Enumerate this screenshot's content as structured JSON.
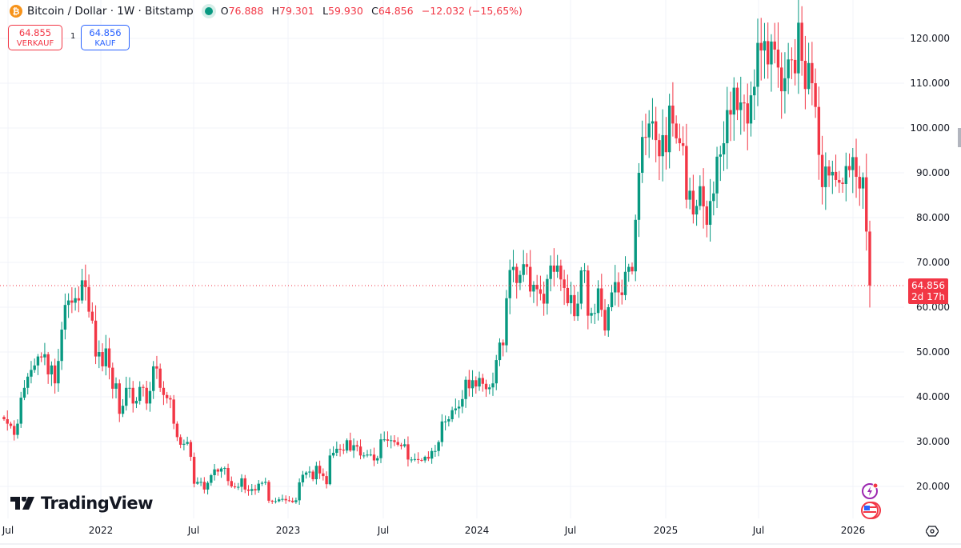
{
  "header": {
    "symbol": "Bitcoin / Dollar · 1W · Bitstamp",
    "coin_glyph": "₿",
    "ohlc": {
      "o_label": "O",
      "o": "76.888",
      "h_label": "H",
      "h": "79.301",
      "l_label": "L",
      "l": "59.930",
      "c_label": "C",
      "c": "64.856",
      "change": "−12.032 (−15,65%)"
    }
  },
  "trade": {
    "sell_price": "64.855",
    "sell_label": "VERKAUF",
    "spread": "1",
    "buy_price": "64.856",
    "buy_label": "KAUF"
  },
  "logo": "TradingView",
  "colors": {
    "up": "#089981",
    "down": "#f23645",
    "grid": "#f0f3fa"
  },
  "icons": [
    "lightning-alert-icon",
    "us-flag-icon",
    "settings-hexagon-icon"
  ],
  "chart_data": {
    "type": "candlestick",
    "interval": "1W",
    "title": "",
    "grid": true,
    "ylim": [
      15000,
      126000
    ],
    "yticks": [
      "20.000",
      "30.000",
      "40.000",
      "50.000",
      "60.000",
      "70.000",
      "80.000",
      "90.000",
      "100.000",
      "110.000",
      "120.000"
    ],
    "ytick_values": [
      20000,
      30000,
      40000,
      50000,
      60000,
      70000,
      80000,
      90000,
      100000,
      110000,
      120000
    ],
    "xticks": [
      "Jul",
      "2022",
      "Jul",
      "2023",
      "Jul",
      "2024",
      "Jul",
      "2025",
      "Jul",
      "2026"
    ],
    "first_open": 35500,
    "closes": [
      35000,
      34000,
      33500,
      31500,
      34000,
      39800,
      42000,
      44500,
      46000,
      47000,
      49000,
      48800,
      49500,
      45000,
      47000,
      43000,
      48000,
      55000,
      60500,
      61500,
      61000,
      62000,
      61500,
      66000,
      64500,
      59000,
      57000,
      49000,
      50000,
      46800,
      50800,
      46500,
      41800,
      43000,
      36200,
      38000,
      42000,
      42000,
      38500,
      39100,
      42200,
      42000,
      38500,
      41300,
      46800,
      46300,
      42000,
      40400,
      39700,
      39400,
      34000,
      31000,
      29300,
      29500,
      29900,
      26600,
      20600,
      21000,
      21000,
      19300,
      20800,
      22500,
      23800,
      23300,
      24000,
      24100,
      21200,
      20000,
      19800,
      19900,
      21800,
      19300,
      19000,
      19400,
      19100,
      20600,
      20800,
      21000,
      16800,
      16600,
      16700,
      17100,
      17200,
      16900,
      16800,
      16500,
      16900,
      20900,
      22600,
      23100,
      23300,
      21600,
      24600,
      22900,
      22300,
      20500,
      26900,
      27500,
      28400,
      28200,
      28000,
      30300,
      28000,
      29200,
      28900,
      26900,
      26900,
      27100,
      27100,
      25800,
      26300,
      30500,
      30500,
      30200,
      30300,
      29900,
      29300,
      29000,
      29400,
      26000,
      26000,
      26100,
      25900,
      25800,
      26600,
      26200,
      27900,
      27900,
      29900,
      34500,
      34500,
      35000,
      37000,
      37400,
      37800,
      39500,
      43800,
      41900,
      43700,
      42300,
      44200,
      42900,
      41700,
      42100,
      43000,
      48200,
      52100,
      51500,
      62000,
      68300,
      69000,
      65400,
      67200,
      69600,
      69000,
      63500,
      65000,
      64000,
      63000,
      60800,
      66300,
      69300,
      67900,
      69300,
      66200,
      64300,
      60900,
      62700,
      58000,
      60800,
      68200,
      68200,
      58100,
      58700,
      58700,
      64200,
      59400,
      54800,
      60000,
      63300,
      65600,
      63300,
      62700,
      67900,
      69000,
      68000,
      79500,
      90000,
      98000,
      97900,
      101000,
      101500,
      97300,
      93700,
      98400,
      94600,
      105000,
      101000,
      97700,
      96600,
      96000,
      84000,
      86000,
      80700,
      82600,
      87000,
      82500,
      78400,
      83700,
      85400,
      93600,
      94100,
      96600,
      104000,
      103000,
      109000,
      104000,
      105700,
      105500,
      101000,
      107300,
      109200,
      119000,
      117300,
      119400,
      114200,
      119300,
      117500,
      113500,
      108200,
      111100,
      115300,
      115200,
      112200,
      123500,
      115000,
      108700,
      114500,
      110000,
      104700,
      94000,
      86800,
      91400,
      89400,
      90200,
      88400,
      87800,
      87500,
      91500,
      90600,
      93500,
      89100,
      86500,
      89000,
      76888,
      64856
    ],
    "last_candle": {
      "open": 76888,
      "high": 79301,
      "low": 59930,
      "close": 64856
    },
    "last_price": {
      "value": "64.856",
      "countdown": "2d 17h"
    }
  }
}
